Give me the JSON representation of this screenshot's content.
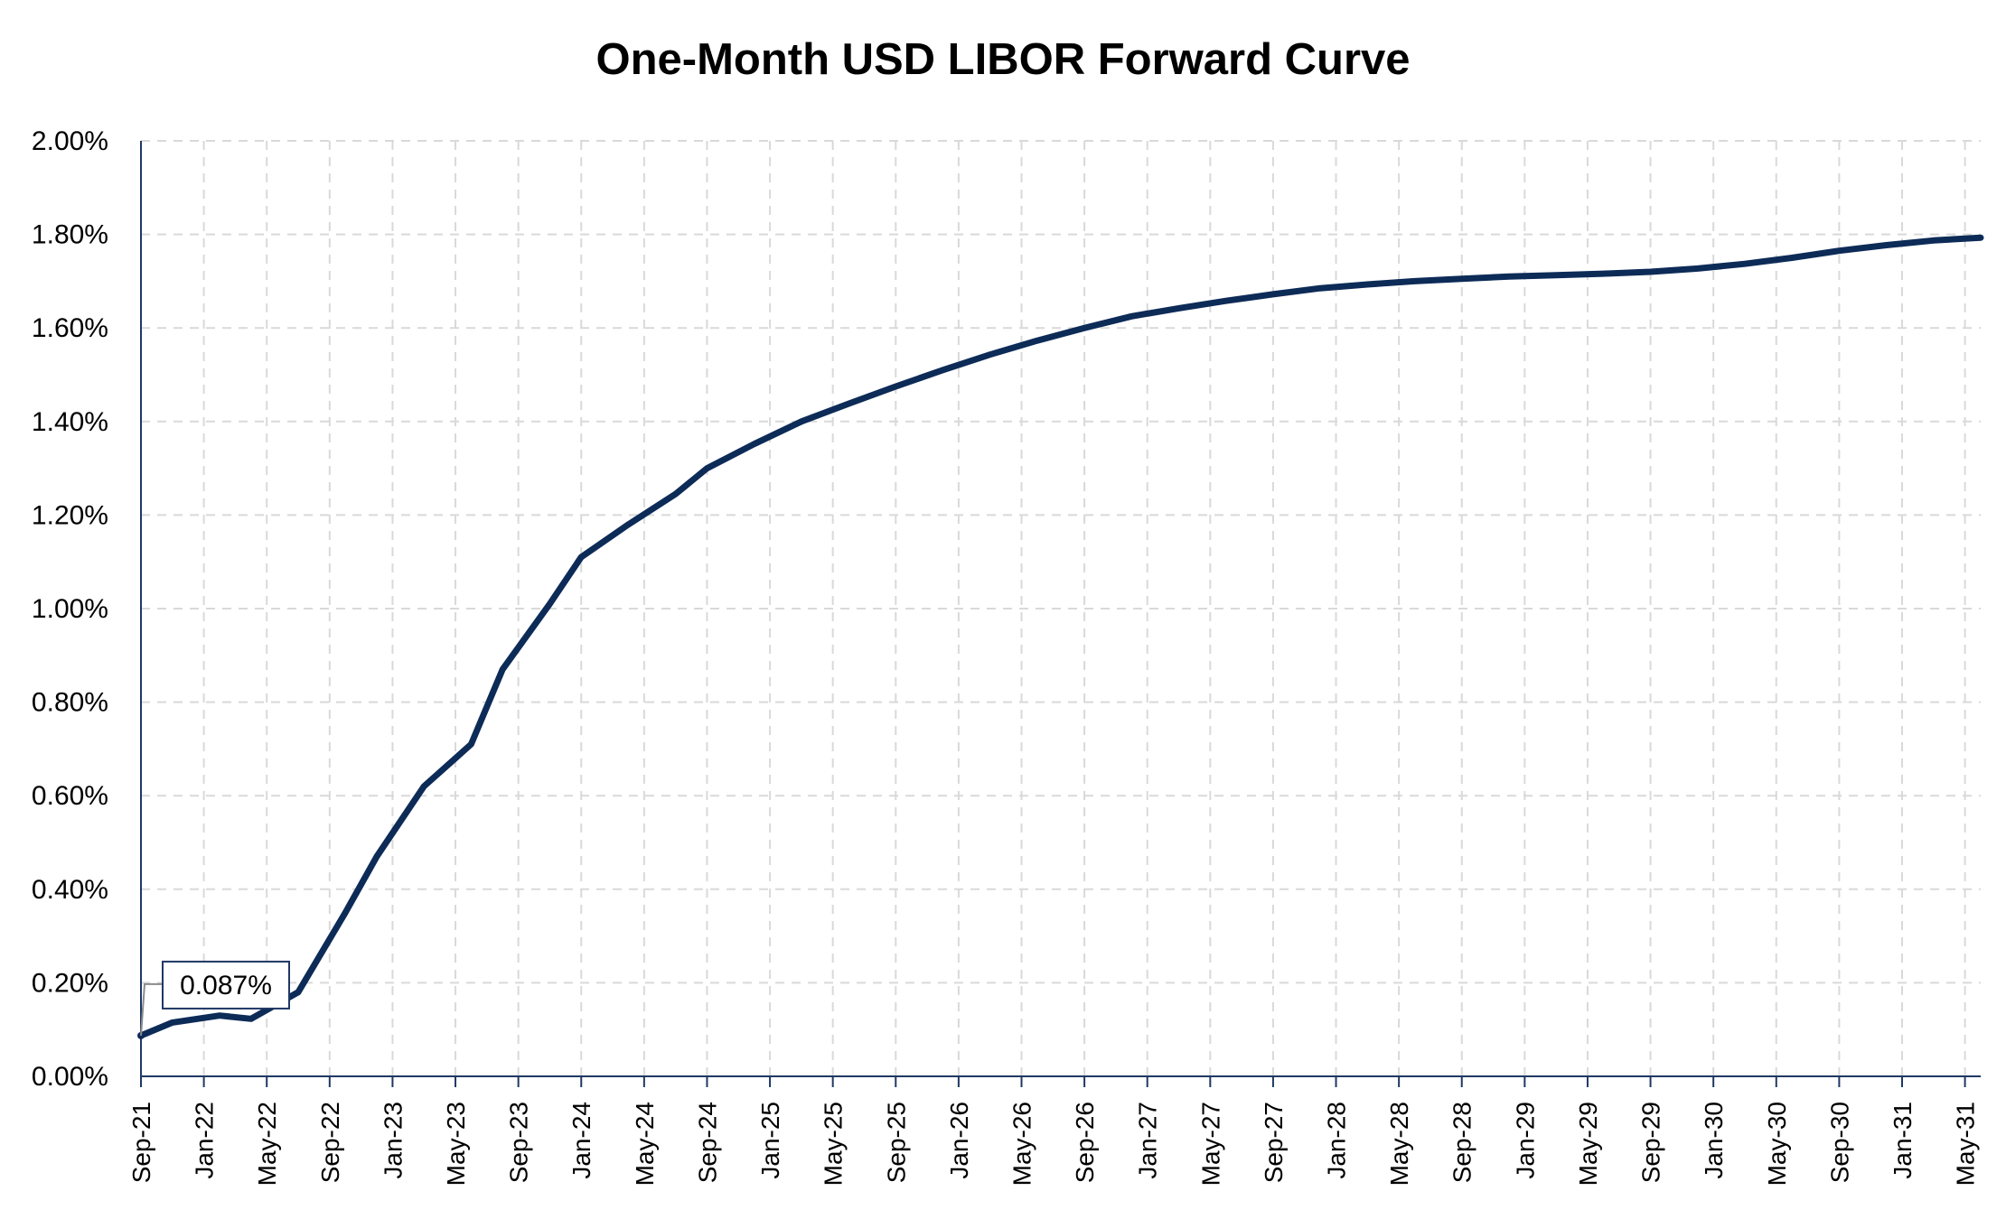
{
  "chart_data": {
    "type": "line",
    "title": "One-Month USD LIBOR Forward Curve",
    "xlabel": "",
    "ylabel": "",
    "ylim": [
      0,
      0.02
    ],
    "y_ticks": [
      "0.00%",
      "0.20%",
      "0.40%",
      "0.60%",
      "0.80%",
      "1.00%",
      "1.20%",
      "1.40%",
      "1.60%",
      "1.80%",
      "2.00%"
    ],
    "x_ticks": [
      "Sep-21",
      "Jan-22",
      "May-22",
      "Sep-22",
      "Jan-23",
      "May-23",
      "Sep-23",
      "Jan-24",
      "May-24",
      "Sep-24",
      "Jan-25",
      "May-25",
      "Sep-25",
      "Jan-26",
      "May-26",
      "Sep-26",
      "Jan-27",
      "May-27",
      "Sep-27",
      "Jan-28",
      "May-28",
      "Sep-28",
      "Jan-29",
      "May-29",
      "Sep-29",
      "Jan-30",
      "May-30",
      "Sep-30",
      "Jan-31",
      "May-31"
    ],
    "grid": true,
    "line_color": "#0d2b57",
    "series": [
      {
        "x": [
          "Sep-21",
          "Nov-21",
          "Feb-22",
          "Apr-22",
          "Jul-22",
          "Oct-22",
          "Dec-22",
          "Mar-23",
          "Jun-23",
          "Aug-23",
          "Nov-23",
          "Jan-24",
          "Apr-24",
          "Jul-24",
          "Sep-24",
          "Dec-24",
          "Mar-25",
          "Jun-25",
          "Sep-25",
          "Dec-25",
          "Mar-26",
          "Jun-26",
          "Sep-26",
          "Dec-26",
          "Mar-27",
          "Jun-27",
          "Sep-27",
          "Dec-27",
          "Mar-28",
          "Jun-28",
          "Sep-28",
          "Dec-28",
          "Mar-29",
          "Jun-29",
          "Sep-29",
          "Dec-29",
          "Mar-30",
          "Jun-30",
          "Sep-30",
          "Dec-30",
          "Mar-31",
          "Jun-31"
        ],
        "values": [
          0.00087,
          0.00115,
          0.0013,
          0.00123,
          0.0018,
          0.0035,
          0.0047,
          0.0062,
          0.0071,
          0.0087,
          0.0101,
          0.0111,
          0.0118,
          0.01245,
          0.013,
          0.01352,
          0.014,
          0.01438,
          0.01475,
          0.0151,
          0.01543,
          0.01573,
          0.016,
          0.01625,
          0.01642,
          0.01658,
          0.01672,
          0.01685,
          0.01693,
          0.017,
          0.01705,
          0.0171,
          0.01713,
          0.01716,
          0.0172,
          0.01727,
          0.01737,
          0.0175,
          0.01765,
          0.01777,
          0.01787,
          0.01793
        ]
      }
    ],
    "annotations": [
      {
        "label": "0.087%",
        "x": "Sep-21",
        "value": 0.00087
      }
    ]
  }
}
